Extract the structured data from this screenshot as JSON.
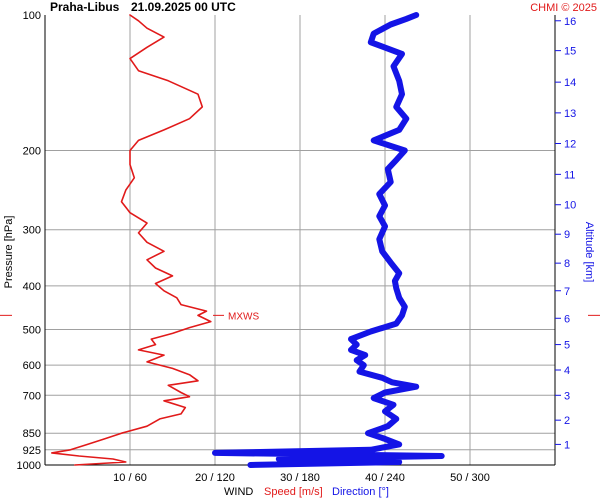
{
  "header": {
    "station": "Praha-Libus",
    "datetime": "21.09.2025 00 UTC",
    "credit": "CHMI © 2025"
  },
  "colors": {
    "speed": "#e11a1a",
    "direction": "#1414e6",
    "grid": "#a0a0a0",
    "axis": "#000000",
    "marker": "#e11a1a"
  },
  "chart_data": {
    "type": "line",
    "y_axis_left": {
      "label": "Pressure [hPa]",
      "scale": "log",
      "range": [
        1000,
        100
      ],
      "ticks": [
        100,
        200,
        300,
        400,
        500,
        600,
        700,
        850,
        925,
        1000
      ]
    },
    "y_axis_right": {
      "label": "Altitude [km]",
      "ticks": [
        {
          "km": 1,
          "p": 900
        },
        {
          "km": 2,
          "p": 795
        },
        {
          "km": 3,
          "p": 700
        },
        {
          "km": 4,
          "p": 615
        },
        {
          "km": 5,
          "p": 540
        },
        {
          "km": 6,
          "p": 472
        },
        {
          "km": 7,
          "p": 410
        },
        {
          "km": 8,
          "p": 356
        },
        {
          "km": 9,
          "p": 307
        },
        {
          "km": 10,
          "p": 264
        },
        {
          "km": 11,
          "p": 226
        },
        {
          "km": 12,
          "p": 193
        },
        {
          "km": 13,
          "p": 165
        },
        {
          "km": 14,
          "p": 141
        },
        {
          "km": 15,
          "p": 120
        },
        {
          "km": 16,
          "p": 103
        }
      ]
    },
    "x_axis": {
      "label_prefix": "WIND",
      "label_speed": "Speed [m/s]",
      "label_direction": "Direction [°]",
      "speed_range": [
        0,
        60
      ],
      "ticks": [
        "10 / 60",
        "20 / 120",
        "30 / 180",
        "40 / 240",
        "50 / 300"
      ]
    },
    "marker": {
      "label": "MXWS",
      "pressure": 465
    },
    "series": [
      {
        "key": "speed",
        "unit": "m/s",
        "points": [
          [
            1000,
            3.5
          ],
          [
            985,
            9.5
          ],
          [
            970,
            8.0
          ],
          [
            955,
            4.0
          ],
          [
            940,
            0.8
          ],
          [
            925,
            3.0
          ],
          [
            900,
            5.0
          ],
          [
            875,
            7.0
          ],
          [
            850,
            9.0
          ],
          [
            820,
            12.0
          ],
          [
            790,
            13.5
          ],
          [
            770,
            16.0
          ],
          [
            745,
            16.5
          ],
          [
            720,
            14.0
          ],
          [
            705,
            17.0
          ],
          [
            690,
            16.0
          ],
          [
            665,
            14.5
          ],
          [
            650,
            18.0
          ],
          [
            630,
            17.0
          ],
          [
            610,
            15.0
          ],
          [
            590,
            12.0
          ],
          [
            570,
            14.0
          ],
          [
            555,
            11.0
          ],
          [
            540,
            13.0
          ],
          [
            525,
            12.5
          ],
          [
            510,
            15.0
          ],
          [
            495,
            17.0
          ],
          [
            480,
            19.5
          ],
          [
            465,
            18.0
          ],
          [
            455,
            19.0
          ],
          [
            440,
            16.0
          ],
          [
            425,
            15.5
          ],
          [
            410,
            14.0
          ],
          [
            395,
            13.0
          ],
          [
            380,
            15.0
          ],
          [
            365,
            13.0
          ],
          [
            350,
            12.0
          ],
          [
            335,
            14.0
          ],
          [
            320,
            12.0
          ],
          [
            305,
            11.0
          ],
          [
            290,
            12.0
          ],
          [
            275,
            10.0
          ],
          [
            260,
            9.0
          ],
          [
            245,
            9.5
          ],
          [
            230,
            10.5
          ],
          [
            215,
            10.0
          ],
          [
            200,
            10.0
          ],
          [
            190,
            11.0
          ],
          [
            180,
            14.0
          ],
          [
            170,
            17.0
          ],
          [
            160,
            18.5
          ],
          [
            150,
            18.0
          ],
          [
            140,
            14.5
          ],
          [
            133,
            11.0
          ],
          [
            125,
            10.0
          ],
          [
            118,
            12.0
          ],
          [
            112,
            14.0
          ],
          [
            107,
            12.0
          ],
          [
            103,
            11.0
          ],
          [
            100,
            10.0
          ]
        ]
      },
      {
        "key": "direction",
        "unit": "deg",
        "points": [
          [
            1000,
            145
          ],
          [
            985,
            250
          ],
          [
            970,
            165
          ],
          [
            955,
            280
          ],
          [
            940,
            120
          ],
          [
            925,
            230
          ],
          [
            900,
            250
          ],
          [
            875,
            240
          ],
          [
            850,
            228
          ],
          [
            820,
            242
          ],
          [
            790,
            248
          ],
          [
            760,
            240
          ],
          [
            735,
            246
          ],
          [
            710,
            232
          ],
          [
            690,
            240
          ],
          [
            670,
            262
          ],
          [
            655,
            245
          ],
          [
            640,
            238
          ],
          [
            620,
            222
          ],
          [
            600,
            225
          ],
          [
            585,
            220
          ],
          [
            570,
            226
          ],
          [
            555,
            216
          ],
          [
            540,
            220
          ],
          [
            525,
            216
          ],
          [
            505,
            230
          ],
          [
            485,
            248
          ],
          [
            465,
            252
          ],
          [
            445,
            254
          ],
          [
            425,
            250
          ],
          [
            405,
            248
          ],
          [
            390,
            247
          ],
          [
            375,
            250
          ],
          [
            355,
            244
          ],
          [
            335,
            238
          ],
          [
            315,
            236
          ],
          [
            295,
            240
          ],
          [
            280,
            236
          ],
          [
            265,
            240
          ],
          [
            250,
            236
          ],
          [
            235,
            244
          ],
          [
            220,
            242
          ],
          [
            210,
            248
          ],
          [
            200,
            254
          ],
          [
            190,
            232
          ],
          [
            180,
            250
          ],
          [
            170,
            255
          ],
          [
            160,
            248
          ],
          [
            150,
            252
          ],
          [
            140,
            250
          ],
          [
            130,
            246
          ],
          [
            122,
            252
          ],
          [
            115,
            230
          ],
          [
            110,
            232
          ],
          [
            105,
            244
          ],
          [
            102,
            255
          ],
          [
            100,
            262
          ]
        ]
      }
    ]
  }
}
